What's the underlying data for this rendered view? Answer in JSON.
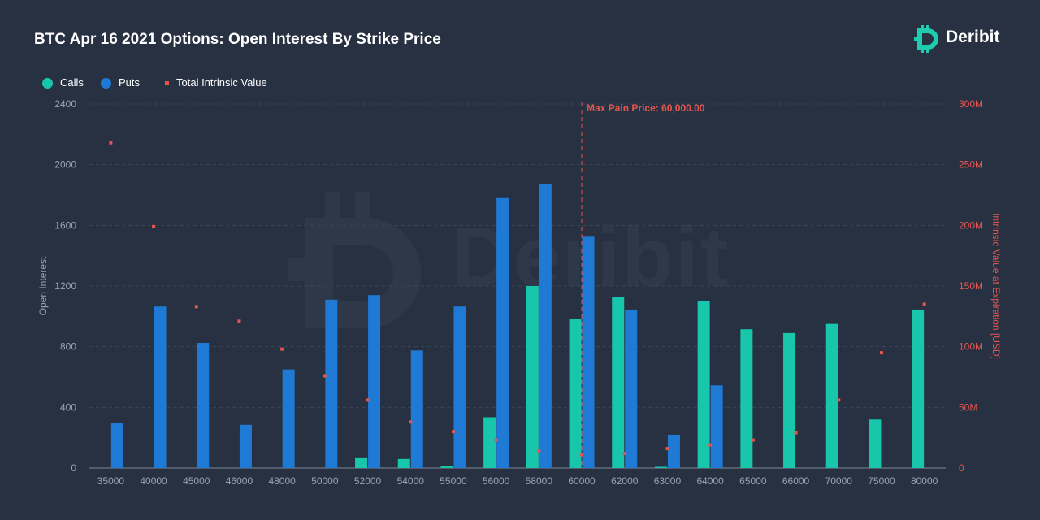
{
  "header": {
    "title": "BTC Apr 16 2021 Options: Open Interest By Strike Price",
    "brand": "Deribit",
    "brand_icon": "deribit-logo-icon",
    "brand_color": "#1ecdb0"
  },
  "legend": {
    "items": [
      {
        "label": "Calls",
        "color": "#17c6ab",
        "marker": "circle"
      },
      {
        "label": "Puts",
        "color": "#1f7ad6",
        "marker": "circle"
      },
      {
        "label": "Total Intrinsic Value",
        "color": "#e5554f",
        "marker": "square"
      }
    ]
  },
  "chart_data": {
    "type": "bar",
    "categories": [
      "35000",
      "40000",
      "45000",
      "46000",
      "48000",
      "50000",
      "52000",
      "54000",
      "55000",
      "56000",
      "58000",
      "60000",
      "62000",
      "63000",
      "64000",
      "65000",
      "66000",
      "70000",
      "75000",
      "80000"
    ],
    "series": [
      {
        "name": "Calls",
        "axis": "left",
        "color": "#17c6ab",
        "values": [
          0,
          0,
          0,
          0,
          0,
          0,
          65,
          60,
          12,
          335,
          1200,
          985,
          1125,
          8,
          1100,
          915,
          890,
          950,
          320,
          1045
        ]
      },
      {
        "name": "Puts",
        "axis": "left",
        "color": "#1f7ad6",
        "values": [
          295,
          1065,
          825,
          285,
          650,
          1110,
          1140,
          775,
          1065,
          1780,
          1870,
          1525,
          1045,
          220,
          545,
          0,
          0,
          0,
          0,
          0
        ]
      },
      {
        "name": "Total Intrinsic Value",
        "axis": "right",
        "type": "scatter",
        "color": "#e5554f",
        "values": [
          268000000,
          199000000,
          133000000,
          121000000,
          98000000,
          76000000,
          56000000,
          38000000,
          30000000,
          23000000,
          14000000,
          11000000,
          12000000,
          16000000,
          19000000,
          23000000,
          29000000,
          56000000,
          95000000,
          135000000
        ]
      }
    ],
    "ylabel": "Open Interest",
    "y2label": "Intrinsic Value at Expiration [USD]",
    "ylim": [
      0,
      2400
    ],
    "y2lim": [
      0,
      300000000
    ],
    "yticks": [
      {
        "value": 0,
        "label": "0"
      },
      {
        "value": 400,
        "label": "400"
      },
      {
        "value": 800,
        "label": "800"
      },
      {
        "value": 1200,
        "label": "1200"
      },
      {
        "value": 1600,
        "label": "1600"
      },
      {
        "value": 2000,
        "label": "2000"
      },
      {
        "value": 2400,
        "label": "2400"
      }
    ],
    "y2ticks": [
      {
        "value": 0,
        "label": "0"
      },
      {
        "value": 50000000,
        "label": "50M"
      },
      {
        "value": 100000000,
        "label": "100M"
      },
      {
        "value": 150000000,
        "label": "150M"
      },
      {
        "value": 200000000,
        "label": "200M"
      },
      {
        "value": 250000000,
        "label": "250M"
      },
      {
        "value": 300000000,
        "label": "300M"
      }
    ],
    "grid": true,
    "legend_position": "top-left",
    "annotations": [
      {
        "label": "Max Pain Price: 60,000.00",
        "category": "60000",
        "color": "#e5554f",
        "style": "dashed-vertical-line"
      }
    ]
  }
}
